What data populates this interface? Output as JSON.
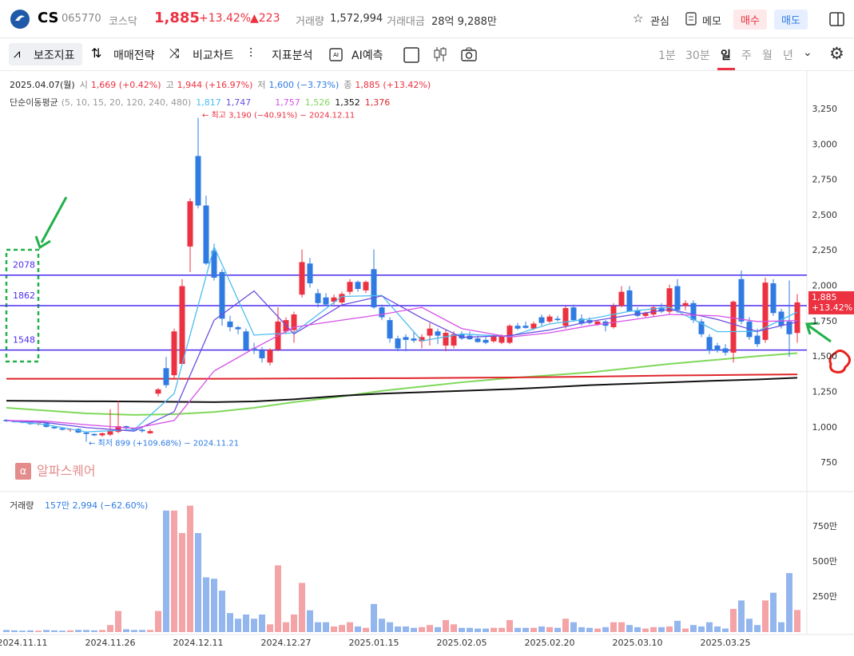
{
  "header": {
    "ticker": "CS",
    "code": "065770",
    "market": "코스닥",
    "price": "1,885",
    "change_pct": "+13.42%",
    "change": "▲223",
    "volume_label": "거래량",
    "volume": "1,572,994",
    "amount_label": "거래대금",
    "amount": "28억 9,288만",
    "favorite": "관심",
    "memo": "메모",
    "buy": "매수",
    "sell": "매도"
  },
  "toolbar": {
    "tools": [
      "보조지표",
      "매매전략",
      "비교차트",
      "지표분석",
      "AI예측"
    ],
    "intervals": [
      "1분",
      "30분",
      "일",
      "주",
      "월",
      "년"
    ]
  },
  "chart_data": {
    "type": "candlestick",
    "info": {
      "date": "2025.04.07(월)",
      "open_label": "시",
      "open": "1,669 (+0.42%)",
      "high_label": "고",
      "high": "1,944 (+16.97%)",
      "low_label": "저",
      "low": "1,600 (−3.73%)",
      "close_label": "종",
      "close": "1,885 (+13.42%)"
    },
    "ma_title": "단순이동평균",
    "ma_periods": "(5, 10, 15, 20, 120, 240, 480)",
    "categories": [
      null,
      null,
      "2024.11.11",
      null,
      null,
      null,
      null,
      null,
      null,
      null,
      null,
      null,
      null,
      "2024.11.26",
      null,
      null,
      null,
      null,
      null,
      null,
      null,
      null,
      null,
      null,
      "2024.12.11",
      null,
      null,
      null,
      null,
      null,
      null,
      null,
      null,
      null,
      null,
      "2024.12.27",
      null,
      null,
      null,
      null,
      null,
      null,
      null,
      null,
      null,
      null,
      "2025.01.15",
      null,
      null,
      null,
      null,
      null,
      null,
      null,
      null,
      null,
      null,
      "2025.02.05",
      null,
      null,
      null,
      null,
      null,
      null,
      null,
      null,
      null,
      null,
      "2025.02.20",
      null,
      null,
      null,
      null,
      null,
      null,
      null,
      null,
      null,
      null,
      "2025.03.10",
      null,
      null,
      null,
      null,
      null,
      null,
      null,
      null,
      null,
      null,
      "2025.03.25",
      null,
      null,
      null,
      null,
      null,
      null,
      null,
      null,
      null
    ],
    "open": [
      1055,
      1045,
      1040,
      1035,
      1025,
      1030,
      1005,
      995,
      985,
      990,
      965,
      955,
      945,
      950,
      970,
      1010,
      995,
      985,
      960,
      1240,
      1420,
      1370,
      1450,
      2280,
      2920,
      2570,
      2250,
      2100,
      1750,
      1710,
      1680,
      1560,
      1545,
      1460,
      1550,
      1680,
      1690,
      1940,
      2160,
      1950,
      1920,
      1890,
      1885,
      1960,
      2030,
      1970,
      2120,
      1850,
      1760,
      1630,
      1640,
      1630,
      1610,
      1650,
      1680,
      1580,
      1580,
      1660,
      1650,
      1630,
      1620,
      1610,
      1600,
      1600,
      1720,
      1720,
      1700,
      1780,
      1750,
      1770,
      1720,
      1850,
      1770,
      1760,
      1730,
      1750,
      1710,
      1860,
      1970,
      1830,
      1790,
      1800,
      1850,
      1820,
      2000,
      1860,
      1880,
      1750,
      1640,
      1580,
      1560,
      1530,
      2050,
      1750,
      1650,
      1620,
      2020,
      1820,
      1750,
      1669
    ],
    "high": [
      1060,
      1050,
      1045,
      1040,
      1035,
      1035,
      1010,
      1000,
      995,
      995,
      970,
      960,
      965,
      1130,
      1190,
      1015,
      1000,
      995,
      990,
      1280,
      1500,
      1700,
      2050,
      2620,
      3190,
      2640,
      2300,
      2120,
      1790,
      1720,
      1700,
      1600,
      1570,
      1560,
      1850,
      1780,
      1820,
      2260,
      2200,
      1980,
      1950,
      1940,
      1960,
      2050,
      2040,
      2040,
      2260,
      1870,
      1780,
      1650,
      1660,
      1680,
      1660,
      1740,
      1700,
      1690,
      1680,
      1680,
      1680,
      1650,
      1640,
      1660,
      1660,
      1730,
      1740,
      1750,
      1750,
      1800,
      1800,
      1790,
      1860,
      1870,
      1800,
      1780,
      1760,
      1760,
      1880,
      2000,
      2000,
      1850,
      1820,
      1860,
      1880,
      2010,
      2050,
      1900,
      1900,
      1770,
      1660,
      1600,
      1590,
      1900,
      2110,
      1780,
      1700,
      2060,
      2050,
      1840,
      2040,
      1944
    ],
    "low": [
      1040,
      1035,
      1030,
      1020,
      1015,
      1000,
      990,
      980,
      970,
      960,
      899,
      940,
      935,
      940,
      960,
      985,
      975,
      965,
      955,
      1220,
      1280,
      1350,
      1440,
      2100,
      2550,
      2150,
      2040,
      1720,
      1680,
      1660,
      1540,
      1520,
      1460,
      1440,
      1540,
      1660,
      1600,
      1920,
      1990,
      1850,
      1860,
      1870,
      1860,
      1940,
      1960,
      1950,
      1840,
      1760,
      1600,
      1540,
      1540,
      1600,
      1560,
      1580,
      1590,
      1540,
      1560,
      1620,
      1620,
      1600,
      1590,
      1600,
      1590,
      1590,
      1690,
      1700,
      1690,
      1720,
      1740,
      1750,
      1700,
      1750,
      1720,
      1730,
      1720,
      1680,
      1700,
      1850,
      1820,
      1780,
      1780,
      1780,
      1810,
      1800,
      1810,
      1830,
      1740,
      1640,
      1520,
      1530,
      1510,
      1460,
      1730,
      1620,
      1570,
      1600,
      1790,
      1700,
      1500,
      1600
    ],
    "close": [
      1045,
      1040,
      1035,
      1025,
      1030,
      1005,
      995,
      985,
      990,
      965,
      955,
      945,
      960,
      975,
      1010,
      995,
      985,
      975,
      975,
      1270,
      1300,
      1680,
      2000,
      2600,
      2570,
      2160,
      2060,
      1770,
      1710,
      1695,
      1550,
      1545,
      1490,
      1550,
      1750,
      1760,
      1800,
      2170,
      2020,
      1880,
      1870,
      1920,
      1945,
      2030,
      1980,
      2030,
      1850,
      1780,
      1630,
      1560,
      1620,
      1615,
      1640,
      1700,
      1650,
      1670,
      1660,
      1630,
      1625,
      1605,
      1600,
      1645,
      1650,
      1720,
      1700,
      1705,
      1735,
      1740,
      1785,
      1760,
      1845,
      1760,
      1735,
      1740,
      1750,
      1720,
      1860,
      1960,
      1820,
      1790,
      1810,
      1850,
      1820,
      1985,
      1830,
      1880,
      1760,
      1660,
      1545,
      1545,
      1530,
      1890,
      1750,
      1640,
      1590,
      2025,
      1810,
      1720,
      1660,
      1885
    ],
    "volume": [
      15,
      12,
      10,
      12,
      10,
      15,
      12,
      10,
      12,
      15,
      15,
      12,
      15,
      50,
      150,
      20,
      15,
      15,
      15,
      150,
      865,
      865,
      705,
      900,
      705,
      390,
      380,
      295,
      135,
      95,
      125,
      95,
      125,
      55,
      475,
      70,
      125,
      350,
      155,
      70,
      70,
      40,
      50,
      70,
      40,
      30,
      200,
      95,
      70,
      40,
      40,
      30,
      35,
      50,
      35,
      85,
      55,
      30,
      30,
      25,
      25,
      30,
      30,
      85,
      30,
      30,
      30,
      40,
      35,
      30,
      95,
      70,
      35,
      30,
      25,
      35,
      70,
      70,
      50,
      35,
      25,
      35,
      35,
      40,
      80,
      25,
      50,
      40,
      70,
      40,
      25,
      165,
      225,
      95,
      50,
      225,
      280,
      70,
      420,
      157
    ],
    "up_color": "#ec3140",
    "down_color": "#2f7be2",
    "volume_up_color": "#f4a3a6",
    "volume_down_color": "#93b6ee",
    "moving_averages": [
      {
        "name": "1,817",
        "color": "#4cbcf0",
        "values": [
          1050,
          1020,
          970,
          985,
          1240,
          2278,
          1654,
          1670,
          1927,
          1934,
          1613,
          1662,
          1644,
          1733,
          1768,
          1822,
          1851,
          1678,
          1680,
          1817
        ]
      },
      {
        "name": "1,747",
        "color": "#6b4fe0",
        "values": [
          1050,
          1035,
          1000,
          975,
          1112,
          1759,
          1966,
          1662,
          1867,
          1931,
          1774,
          1638,
          1650,
          1690,
          1750,
          1795,
          1836,
          1765,
          1680,
          1747
        ]
      },
      {
        "name": "1,757",
        "color": "#d64fe8",
        "values": [
          1050,
          1045,
          1020,
          995,
          1050,
          1400,
          1560,
          1710,
          1760,
          1800,
          1850,
          1700,
          1640,
          1670,
          1720,
          1760,
          1800,
          1790,
          1750,
          1757
        ]
      },
      {
        "name": "1,526",
        "color": "#7fd85a",
        "values": [
          1140,
          1120,
          1100,
          1090,
          1095,
          1110,
          1140,
          1180,
          1220,
          1260,
          1290,
          1320,
          1350,
          1370,
          1390,
          1420,
          1450,
          1480,
          1505,
          1526
        ]
      },
      {
        "name": "1,352",
        "color": "#111111",
        "values": [
          1190,
          1188,
          1186,
          1184,
          1182,
          1180,
          1185,
          1200,
          1225,
          1240,
          1250,
          1260,
          1272,
          1285,
          1300,
          1310,
          1320,
          1332,
          1340,
          1352
        ]
      },
      {
        "name": "1,376",
        "color": "#e0262b",
        "values": [
          1345,
          1345,
          1345,
          1345,
          1345,
          1345,
          1346,
          1347,
          1348,
          1349,
          1350,
          1352,
          1354,
          1357,
          1360,
          1364,
          1368,
          1371,
          1374,
          1376
        ]
      }
    ],
    "levels": [
      2078,
      1862,
      1548
    ],
    "level_color": "#4a2cf0",
    "ylim": [
      553,
      3504
    ],
    "yticks": [
      750,
      {
        "value": 1000,
        "label": "1,000"
      },
      {
        "value": 1250,
        "label": "1,250"
      },
      {
        "value": 1500,
        "label": "1,500"
      },
      {
        "value": 1750,
        "label": "1,750"
      },
      {
        "value": 2000,
        "label": "2,000"
      },
      {
        "value": 2250,
        "label": "2,250"
      },
      {
        "value": 2500,
        "label": "2,500"
      },
      {
        "value": 2750,
        "label": "2,750"
      },
      {
        "value": 3000,
        "label": "3,000"
      },
      {
        "value": 3250,
        "label": "3,250"
      }
    ],
    "volume_ylim": [
      0,
      966
    ],
    "volume_yticks": [
      {
        "value": 250,
        "label": "250만"
      },
      {
        "value": 500,
        "label": "500만"
      },
      {
        "value": 750,
        "label": "750만"
      }
    ],
    "last_price": "1,885",
    "last_change": "+13.42%",
    "high_note": "← 최고 3,190 (−40.91%) − 2024.12.11",
    "low_note": "← 최저 899 (+109.68%) − 2024.11.21",
    "watermark": "알파스퀘어",
    "volume_title": "거래량",
    "volume_info": "157만 2,994 (−62.60%)"
  }
}
